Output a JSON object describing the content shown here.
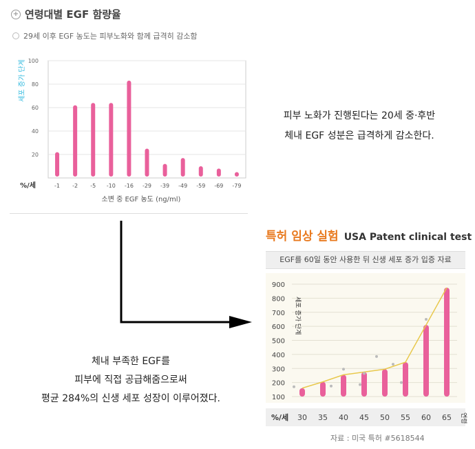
{
  "header": {
    "title": "연령대별 EGF 함량율",
    "subtitle": "29세 이후 EGF 농도는 피부노화와 함께 급격히 감소함"
  },
  "right_text": [
    "피부 노화가 진행된다는 20세 중·후반",
    "체내 EGF 성분은 급격하게 감소한다."
  ],
  "left_text": [
    "체내 부족한 EGF를",
    "피부에 직접 공급해줌으로써",
    "평균 284%의 신생 세포 성장이 이루어졌다."
  ],
  "patent": {
    "title_ko": "특허 임상 실험",
    "title_en": "USA Patent clinical test",
    "banner": "EGF를 60일 동안 사용한 뒤 신생 세포 증가 입증 자료",
    "source": "자료 : 미국 특허 #5618544"
  },
  "colors": {
    "bar": "#e9609b",
    "line": "#e8c84c",
    "axis_label": "#3bbde0",
    "accent": "#e8791e"
  },
  "chart_data": [
    {
      "type": "bar",
      "ylabel": "세포 증가 단계",
      "xlabel": "소변 중 EGF 농도 (ng/ml)",
      "x_unit_label": "%/세",
      "ylim": [
        0,
        100
      ],
      "yticks": [
        20,
        40,
        60,
        80,
        100
      ],
      "grid": true,
      "categories": [
        "-1",
        "-2",
        "-5",
        "-10",
        "-16",
        "-29",
        "-39",
        "-49",
        "-59",
        "-69",
        "-79"
      ],
      "values": [
        22,
        62,
        64,
        64,
        83,
        25,
        12,
        17,
        10,
        8,
        5
      ]
    },
    {
      "type": "bar",
      "ylabel": "세포 증가 단계",
      "xlabel": "연령",
      "x_unit_label": "%/세",
      "ylim": [
        100,
        900
      ],
      "yticks": [
        100,
        200,
        300,
        400,
        500,
        600,
        700,
        800,
        900
      ],
      "grid": true,
      "categories": [
        "30",
        "35",
        "40",
        "45",
        "50",
        "55",
        "60",
        "65"
      ],
      "values": [
        160,
        205,
        255,
        275,
        295,
        345,
        610,
        875
      ],
      "line_values": [
        160,
        205,
        255,
        275,
        295,
        345,
        610,
        875
      ],
      "scatter": [
        [
          28,
          170
        ],
        [
          37,
          175
        ],
        [
          40,
          295
        ],
        [
          44,
          185
        ],
        [
          45,
          265
        ],
        [
          48,
          385
        ],
        [
          52,
          330
        ],
        [
          54,
          200
        ],
        [
          60,
          650
        ]
      ]
    }
  ]
}
